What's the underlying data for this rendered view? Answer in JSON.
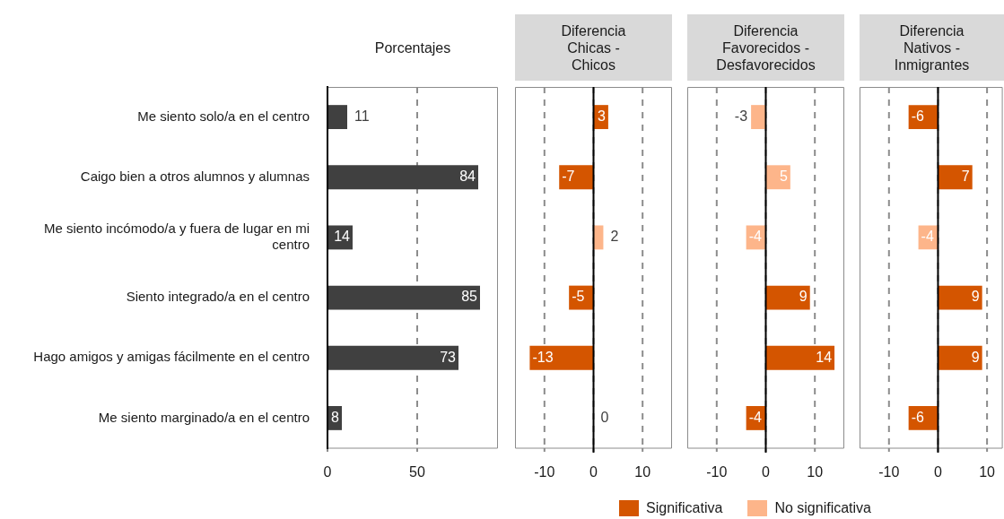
{
  "chart_data": [
    {
      "type": "bar",
      "orientation": "horizontal",
      "title": "Porcentajes",
      "categories": [
        "Me siento solo/a en el centro",
        "Caigo bien a otros alumnos y alumnas",
        "Me siento incómodo/a y fuera de lugar en mi centro",
        "Siento integrado/a en el centro",
        "Hago amigos y amigas fácilmente en el centro",
        "Me siento marginado/a en el centro"
      ],
      "values": [
        11,
        84,
        14,
        85,
        73,
        8
      ],
      "color": "#404040",
      "xlim": [
        0,
        95
      ],
      "xticks": [
        0,
        50
      ],
      "grid": "x",
      "data_labels": true
    },
    {
      "type": "bar",
      "orientation": "horizontal",
      "stacked": true,
      "title": "Diferencia\nChicas -\nChicos",
      "categories": [
        null,
        null,
        null,
        null,
        null,
        null
      ],
      "series": [
        {
          "name": "Significativa",
          "color": "#d45500",
          "values": [
            3,
            -7,
            null,
            -5,
            -13,
            null
          ]
        },
        {
          "name": "No significativa",
          "color": "#fdb58a",
          "values": [
            null,
            null,
            2,
            null,
            null,
            0
          ]
        }
      ],
      "xlim": [
        -16,
        16
      ],
      "xticks": [
        -10,
        0,
        10
      ],
      "grid": "x",
      "ref_lines": [
        {
          "axis": "x",
          "value": 0
        }
      ],
      "data_labels": true,
      "tick_labels": "x",
      "legend": "bottom"
    },
    {
      "type": "bar",
      "orientation": "horizontal",
      "stacked": true,
      "title": "Diferencia\nFavorecidos -\nDesfavorecidos",
      "categories": [
        null,
        null,
        null,
        null,
        null,
        null
      ],
      "series": [
        {
          "color": "#d45500",
          "values": [
            null,
            null,
            null,
            9,
            14,
            -4
          ]
        },
        {
          "color": "#fdb58a",
          "values": [
            -3,
            5,
            -4,
            null,
            null,
            null
          ]
        }
      ],
      "xlim": [
        -16,
        16
      ],
      "xticks": [
        -10,
        0,
        10
      ],
      "grid": "x",
      "ref_lines": [
        {
          "axis": "x",
          "value": 0
        }
      ],
      "data_labels": true,
      "tick_labels": "x"
    },
    {
      "type": "bar",
      "orientation": "horizontal",
      "stacked": true,
      "title": "Diferencia\nNativos -\nInmigrantes",
      "categories": [
        null,
        null,
        null,
        null,
        null,
        null
      ],
      "series": [
        {
          "color": "#d45500",
          "values": [
            -6,
            7,
            null,
            9,
            9,
            -6
          ]
        },
        {
          "color": "#fdb58a",
          "values": [
            null,
            null,
            -4,
            null,
            null,
            null
          ]
        }
      ],
      "xlim": [
        -16,
        13.2
      ],
      "xticks": [
        -10,
        0,
        10
      ],
      "grid": "x",
      "ref_lines": [
        {
          "axis": "x",
          "value": 0
        }
      ],
      "data_labels": true,
      "tick_labels": "x"
    }
  ]
}
